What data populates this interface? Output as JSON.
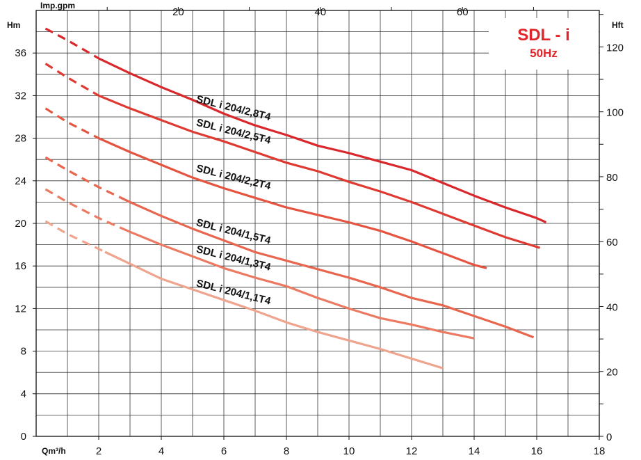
{
  "chart_data": {
    "type": "line",
    "title": "SDL - i",
    "subtitle": "50Hz",
    "xlabel": "Qm³/h",
    "x2label": "Imp.gpm",
    "ylabel": "Hm",
    "y2label": "Hft",
    "xlim": [
      0,
      18
    ],
    "ylim": [
      0,
      40
    ],
    "x_ticks": [
      2,
      4,
      6,
      8,
      10,
      12,
      14,
      16,
      18
    ],
    "y_ticks": [
      0,
      4,
      8,
      12,
      16,
      20,
      24,
      28,
      32,
      36
    ],
    "x2_ticks": [
      20,
      40,
      60
    ],
    "y2_ticks": [
      0,
      20,
      40,
      60,
      80,
      100,
      120
    ],
    "grid": true,
    "series": [
      {
        "name": "SDL i 204/2,8T4",
        "color": "#d9272b",
        "x": [
          0.3,
          1,
          2,
          3,
          4,
          5,
          6,
          7,
          8,
          9,
          10,
          11,
          12,
          13,
          14,
          15,
          16,
          16.3
        ],
        "y": [
          38.3,
          37.2,
          35.5,
          34.1,
          32.8,
          31.6,
          30.3,
          29.2,
          28.3,
          27.3,
          26.6,
          25.8,
          25.0,
          23.8,
          22.6,
          21.5,
          20.5,
          20.1
        ],
        "dashed_until": 2
      },
      {
        "name": "SDL i 204/2,5T4",
        "color": "#df3a32",
        "x": [
          0.3,
          1,
          2,
          3,
          4,
          5,
          6,
          7,
          8,
          9,
          10,
          11,
          12,
          13,
          14,
          15,
          16,
          16.1
        ],
        "y": [
          35.0,
          33.7,
          32.0,
          30.8,
          29.7,
          28.6,
          27.7,
          26.7,
          25.7,
          24.9,
          23.9,
          23.0,
          22.0,
          20.9,
          19.8,
          18.7,
          17.8,
          17.7
        ],
        "dashed_until": 2
      },
      {
        "name": "SDL i 204/2,2T4",
        "color": "#e55440",
        "x": [
          0.3,
          1,
          2,
          3,
          4,
          5,
          6,
          7,
          8,
          9,
          10,
          11,
          12,
          13,
          14,
          14.4
        ],
        "y": [
          30.8,
          29.5,
          28.0,
          26.7,
          25.5,
          24.3,
          23.3,
          22.4,
          21.5,
          20.8,
          20.1,
          19.3,
          18.3,
          17.2,
          16.1,
          15.8
        ],
        "dashed_until": 2
      },
      {
        "name": "SDL i 204/1,5T4",
        "color": "#e8664e",
        "x": [
          0.3,
          1,
          2,
          3,
          4,
          5,
          6,
          7,
          8,
          9,
          10,
          11,
          12,
          13,
          14,
          15,
          15.9
        ],
        "y": [
          26.2,
          25.0,
          23.4,
          22.0,
          20.7,
          19.5,
          18.4,
          17.3,
          16.5,
          15.7,
          14.9,
          14.0,
          13.0,
          12.3,
          11.3,
          10.3,
          9.3
        ],
        "dashed_until": 2.7
      },
      {
        "name": "SDL i 204/1,3T4",
        "color": "#ec7a62",
        "x": [
          0.3,
          1,
          2,
          3,
          4,
          5,
          6,
          7,
          8,
          9,
          10,
          11,
          12,
          13,
          14
        ],
        "y": [
          23.2,
          22.0,
          20.5,
          19.2,
          18.0,
          16.9,
          15.8,
          14.9,
          14.1,
          13.0,
          12.0,
          11.1,
          10.5,
          9.8,
          9.2
        ],
        "dashed_until": 2.7
      },
      {
        "name": "SDL i 204/1,1T4",
        "color": "#efa48e",
        "x": [
          0.3,
          1,
          2,
          3,
          4,
          5,
          6,
          7,
          8,
          9,
          10,
          11,
          12,
          13
        ],
        "y": [
          20.2,
          19.0,
          17.6,
          16.2,
          14.8,
          13.8,
          12.8,
          11.8,
          10.7,
          9.8,
          9.0,
          8.2,
          7.3,
          6.4
        ],
        "dashed_until": 2.2
      }
    ]
  }
}
